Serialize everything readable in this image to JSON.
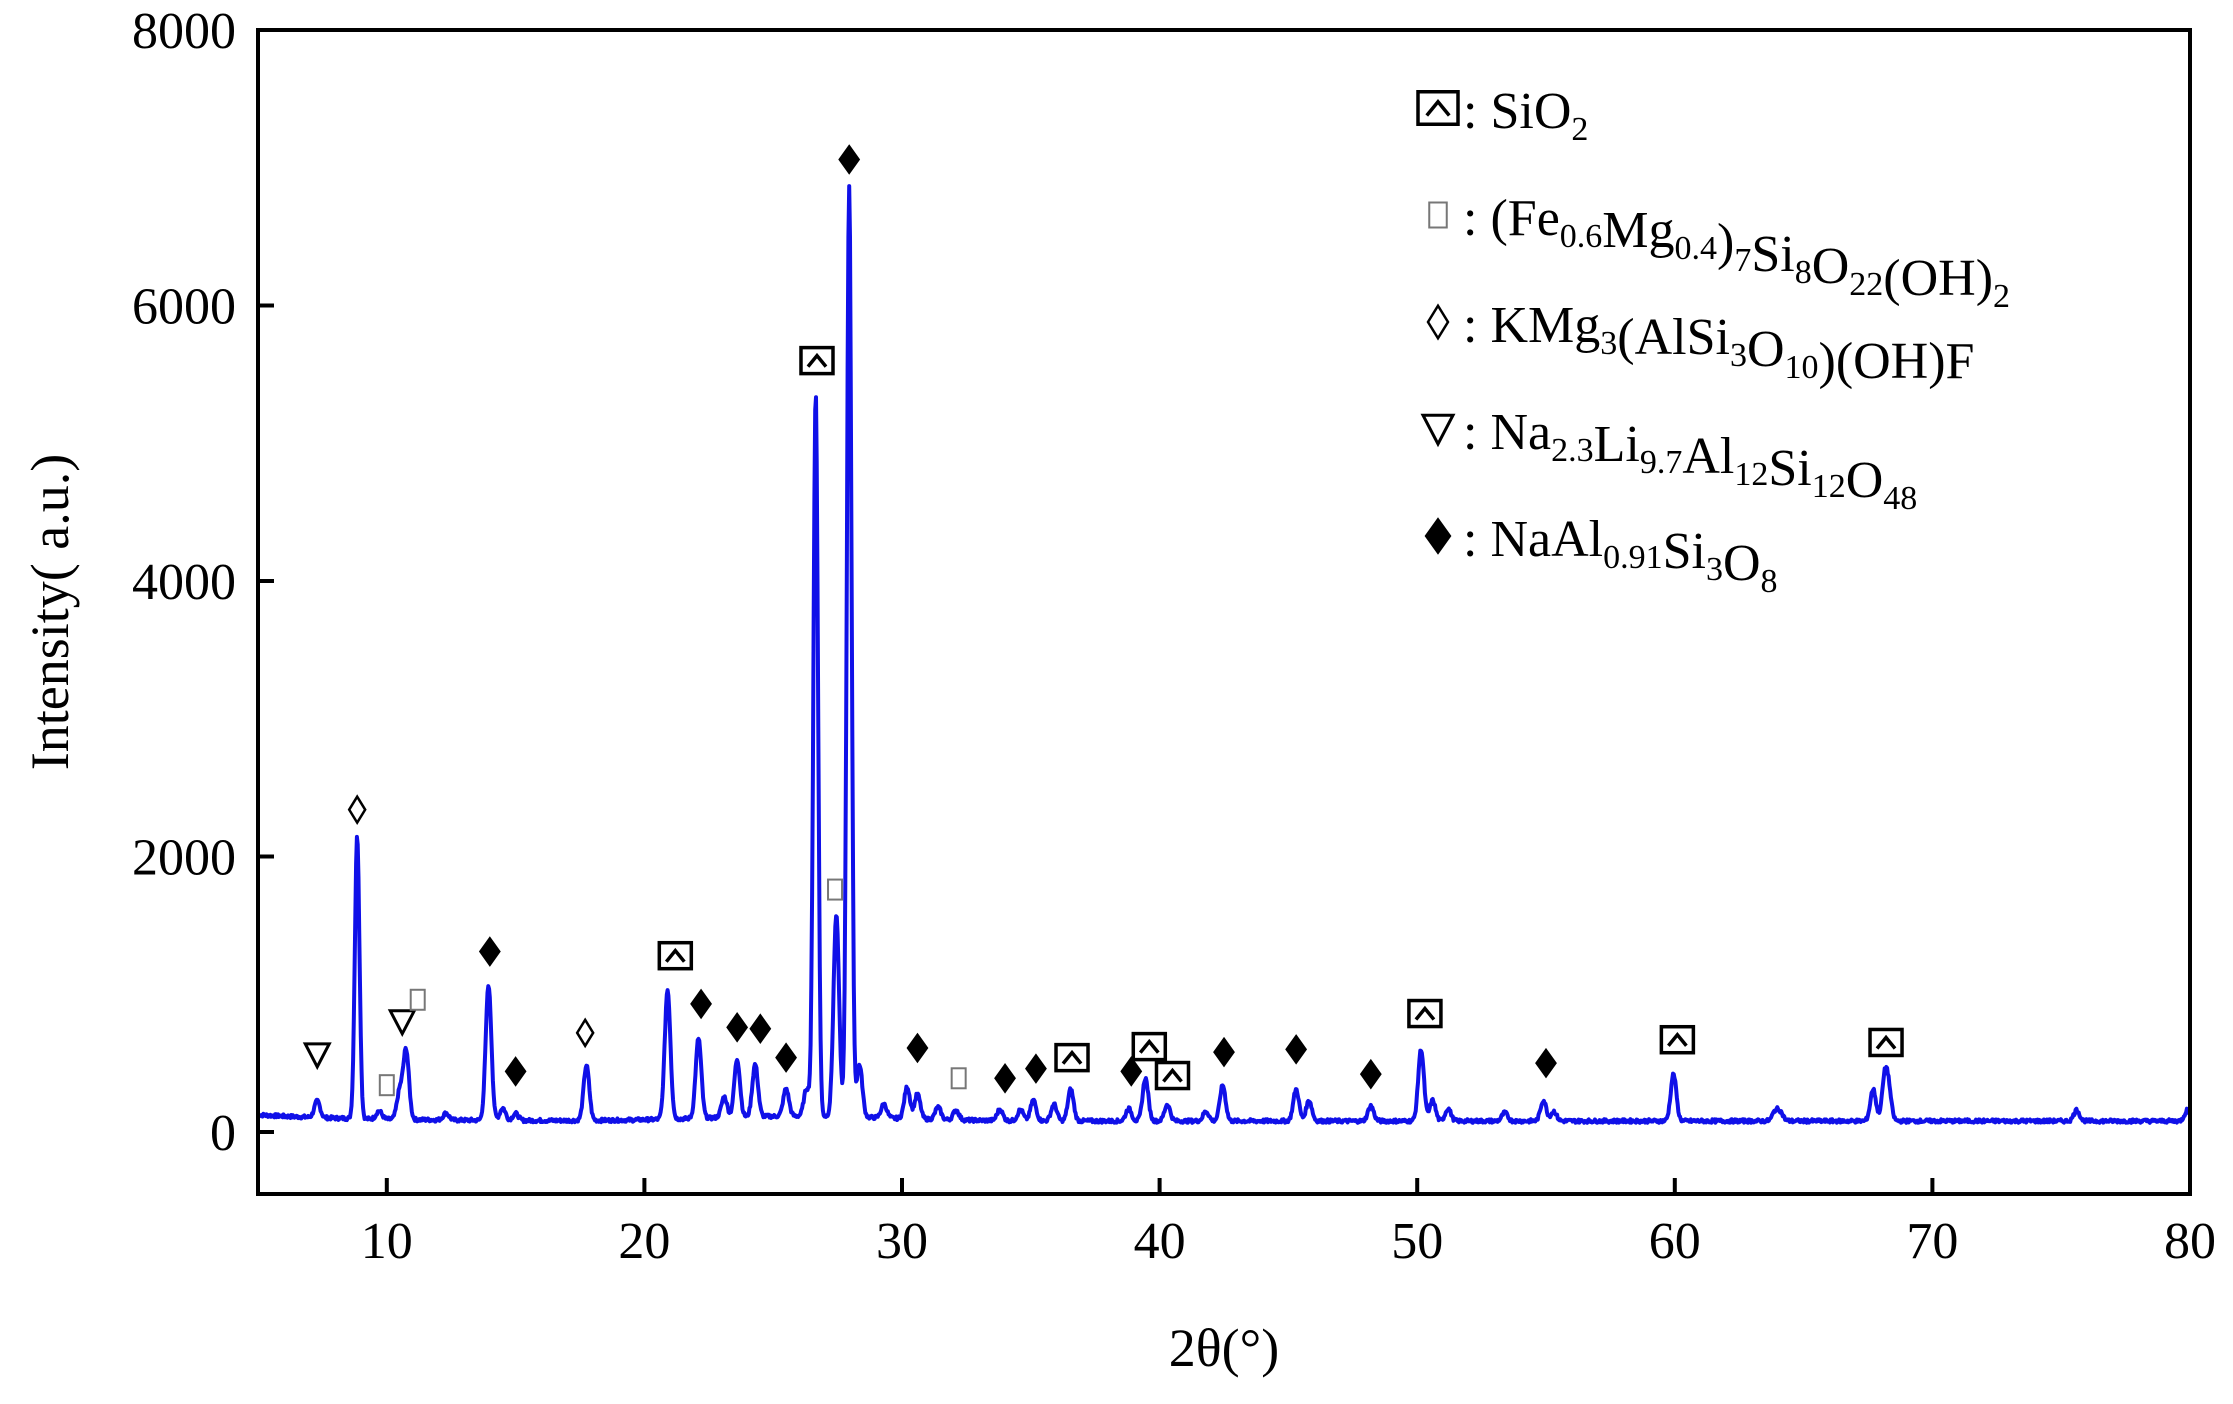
{
  "chart_data": {
    "type": "line",
    "title": "",
    "xlabel": "2θ(°)",
    "ylabel": "Intensity( a.u.)",
    "xlim": [
      5,
      80
    ],
    "ylim": [
      -450,
      8000
    ],
    "x_ticks": [
      10,
      20,
      30,
      40,
      50,
      60,
      70,
      80
    ],
    "x_tick_labels": [
      "10",
      "20",
      "30",
      "40",
      "50",
      "60",
      "70",
      "80"
    ],
    "y_ticks": [
      0,
      2000,
      4000,
      6000,
      8000
    ],
    "y_tick_labels": [
      "0",
      "2000",
      "4000",
      "6000",
      "8000"
    ],
    "grid": false,
    "legend_position": "top-right",
    "line_color": "#1010e8",
    "baseline": 80,
    "series": [
      {
        "peaks": [
          {
            "x": 7.3,
            "y": 120
          },
          {
            "x": 8.85,
            "y": 2050
          },
          {
            "x": 9.7,
            "y": 60
          },
          {
            "x": 10.5,
            "y": 200
          },
          {
            "x": 10.75,
            "y": 500
          },
          {
            "x": 12.3,
            "y": 50
          },
          {
            "x": 13.95,
            "y": 980
          },
          {
            "x": 14.5,
            "y": 90
          },
          {
            "x": 15.0,
            "y": 50
          },
          {
            "x": 17.75,
            "y": 400
          },
          {
            "x": 20.9,
            "y": 940
          },
          {
            "x": 22.1,
            "y": 580
          },
          {
            "x": 23.1,
            "y": 150
          },
          {
            "x": 23.6,
            "y": 420
          },
          {
            "x": 24.3,
            "y": 380
          },
          {
            "x": 25.5,
            "y": 200
          },
          {
            "x": 26.3,
            "y": 200
          },
          {
            "x": 26.65,
            "y": 5250
          },
          {
            "x": 27.45,
            "y": 1460
          },
          {
            "x": 27.95,
            "y": 6760
          },
          {
            "x": 28.35,
            "y": 380
          },
          {
            "x": 29.3,
            "y": 100
          },
          {
            "x": 30.2,
            "y": 230
          },
          {
            "x": 30.6,
            "y": 180
          },
          {
            "x": 31.4,
            "y": 90
          },
          {
            "x": 32.1,
            "y": 70
          },
          {
            "x": 33.8,
            "y": 80
          },
          {
            "x": 34.6,
            "y": 80
          },
          {
            "x": 35.1,
            "y": 150
          },
          {
            "x": 35.9,
            "y": 120
          },
          {
            "x": 36.55,
            "y": 230
          },
          {
            "x": 38.8,
            "y": 90
          },
          {
            "x": 39.45,
            "y": 310
          },
          {
            "x": 40.3,
            "y": 120
          },
          {
            "x": 41.8,
            "y": 70
          },
          {
            "x": 42.45,
            "y": 260
          },
          {
            "x": 45.3,
            "y": 230
          },
          {
            "x": 45.8,
            "y": 150
          },
          {
            "x": 48.2,
            "y": 110
          },
          {
            "x": 50.15,
            "y": 520
          },
          {
            "x": 50.6,
            "y": 150
          },
          {
            "x": 51.2,
            "y": 90
          },
          {
            "x": 53.4,
            "y": 60
          },
          {
            "x": 54.9,
            "y": 150
          },
          {
            "x": 55.3,
            "y": 70
          },
          {
            "x": 59.95,
            "y": 340
          },
          {
            "x": 63.9,
            "y": 70
          },
          {
            "x": 64.1,
            "y": 60
          },
          {
            "x": 67.7,
            "y": 230
          },
          {
            "x": 68.15,
            "y": 290
          },
          {
            "x": 68.3,
            "y": 200
          },
          {
            "x": 75.6,
            "y": 80
          },
          {
            "x": 79.9,
            "y": 80
          }
        ]
      }
    ],
    "legend": [
      {
        "marker": "boxed-caret",
        "segments": [
          {
            "t": "SiO"
          },
          {
            "t": "2",
            "sub": true
          }
        ]
      },
      {
        "marker": "small-square",
        "segments": [
          {
            "t": "(Fe"
          },
          {
            "t": "0.6",
            "sub": true
          },
          {
            "t": "Mg"
          },
          {
            "t": "0.4",
            "sub": true
          },
          {
            "t": ")"
          },
          {
            "t": "7",
            "sub": true
          },
          {
            "t": "Si"
          },
          {
            "t": "8",
            "sub": true
          },
          {
            "t": "O"
          },
          {
            "t": "22",
            "sub": true
          },
          {
            "t": "(OH)"
          },
          {
            "t": "2",
            "sub": true
          }
        ]
      },
      {
        "marker": "open-diamond",
        "segments": [
          {
            "t": "KMg"
          },
          {
            "t": "3",
            "sub": true
          },
          {
            "t": "(AlSi"
          },
          {
            "t": "3",
            "sub": true
          },
          {
            "t": "O"
          },
          {
            "t": "10",
            "sub": true
          },
          {
            "t": ")(OH)F"
          }
        ]
      },
      {
        "marker": "open-triangle-down",
        "segments": [
          {
            "t": "Na"
          },
          {
            "t": "2.3",
            "sub": true
          },
          {
            "t": "Li"
          },
          {
            "t": "9.7",
            "sub": true
          },
          {
            "t": "Al"
          },
          {
            "t": "12",
            "sub": true
          },
          {
            "t": "Si"
          },
          {
            "t": "12",
            "sub": true
          },
          {
            "t": "O"
          },
          {
            "t": "48",
            "sub": true
          }
        ]
      },
      {
        "marker": "filled-diamond",
        "segments": [
          {
            "t": "NaAl"
          },
          {
            "t": "0.91",
            "sub": true
          },
          {
            "t": "Si"
          },
          {
            "t": "3",
            "sub": true
          },
          {
            "t": "O"
          },
          {
            "t": "8",
            "sub": true
          }
        ]
      }
    ],
    "annotations": [
      {
        "marker": "open-triangle-down",
        "x": 7.3,
        "y": 560
      },
      {
        "marker": "open-diamond",
        "x": 8.85,
        "y": 2340
      },
      {
        "marker": "small-square",
        "x": 10.0,
        "y": 340
      },
      {
        "marker": "open-triangle-down",
        "x": 10.6,
        "y": 800
      },
      {
        "marker": "small-square",
        "x": 11.2,
        "y": 960
      },
      {
        "marker": "filled-diamond",
        "x": 14.0,
        "y": 1310
      },
      {
        "marker": "filled-diamond",
        "x": 15.0,
        "y": 440
      },
      {
        "marker": "open-diamond",
        "x": 17.7,
        "y": 720
      },
      {
        "marker": "boxed-caret",
        "x": 21.2,
        "y": 1280
      },
      {
        "marker": "filled-diamond",
        "x": 22.2,
        "y": 930
      },
      {
        "marker": "filled-diamond",
        "x": 23.6,
        "y": 760
      },
      {
        "marker": "filled-diamond",
        "x": 24.5,
        "y": 750
      },
      {
        "marker": "filled-diamond",
        "x": 25.5,
        "y": 540
      },
      {
        "marker": "boxed-caret",
        "x": 26.7,
        "y": 5600
      },
      {
        "marker": "small-square",
        "x": 27.4,
        "y": 1760
      },
      {
        "marker": "filled-diamond",
        "x": 27.95,
        "y": 7060
      },
      {
        "marker": "filled-diamond",
        "x": 30.6,
        "y": 610
      },
      {
        "marker": "small-square",
        "x": 32.2,
        "y": 390
      },
      {
        "marker": "filled-diamond",
        "x": 34.0,
        "y": 390
      },
      {
        "marker": "filled-diamond",
        "x": 35.2,
        "y": 460
      },
      {
        "marker": "boxed-caret",
        "x": 36.6,
        "y": 540
      },
      {
        "marker": "filled-diamond",
        "x": 38.9,
        "y": 440
      },
      {
        "marker": "boxed-caret",
        "x": 39.6,
        "y": 620
      },
      {
        "marker": "boxed-caret",
        "x": 40.5,
        "y": 410
      },
      {
        "marker": "filled-diamond",
        "x": 42.5,
        "y": 580
      },
      {
        "marker": "filled-diamond",
        "x": 45.3,
        "y": 600
      },
      {
        "marker": "filled-diamond",
        "x": 48.2,
        "y": 420
      },
      {
        "marker": "boxed-caret",
        "x": 50.3,
        "y": 860
      },
      {
        "marker": "filled-diamond",
        "x": 55.0,
        "y": 500
      },
      {
        "marker": "boxed-caret",
        "x": 60.1,
        "y": 670
      },
      {
        "marker": "boxed-caret",
        "x": 68.2,
        "y": 650
      }
    ]
  }
}
